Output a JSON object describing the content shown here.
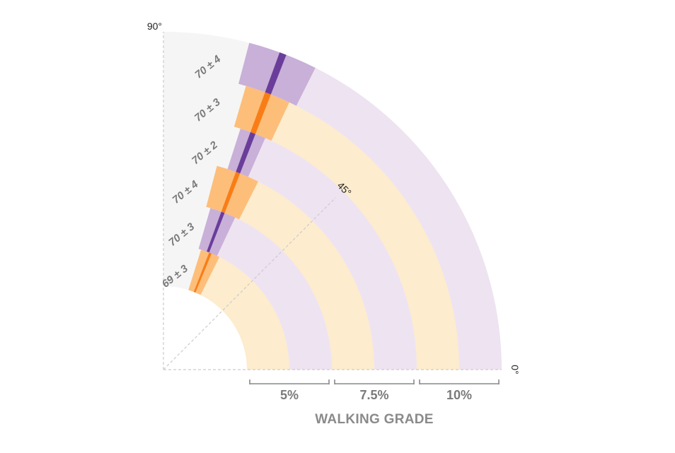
{
  "chart_data": {
    "type": "polar-arc",
    "angle_labels": {
      "start": "90°",
      "middle": "45°",
      "end": "0°"
    },
    "xlabel": "WALKING GRADE",
    "x_ticks": [
      "5%",
      "7.5%",
      "10%"
    ],
    "colors": {
      "orange_light": "#fdeccd",
      "orange_mid": "#fdbe7a",
      "orange_dark": "#f97d16",
      "purple_light": "#eee3f1",
      "purple_mid": "#c8b0d8",
      "purple_dark": "#6a3d9a",
      "background_wedge": "#f5f5f5",
      "guide": "#cccccc",
      "bracket": "#888888"
    },
    "bands": [
      {
        "label": "69 ± 3",
        "mean": 69,
        "sd": 3,
        "color": "orange"
      },
      {
        "label": "70 ± 3",
        "mean": 70,
        "sd": 3,
        "color": "purple"
      },
      {
        "label": "70 ± 4",
        "mean": 70,
        "sd": 4,
        "color": "orange"
      },
      {
        "label": "70 ± 2",
        "mean": 70,
        "sd": 2,
        "color": "purple"
      },
      {
        "label": "70 ± 3",
        "mean": 70,
        "sd": 3,
        "color": "orange"
      },
      {
        "label": "70 ± 4",
        "mean": 70,
        "sd": 4,
        "color": "purple"
      }
    ]
  }
}
